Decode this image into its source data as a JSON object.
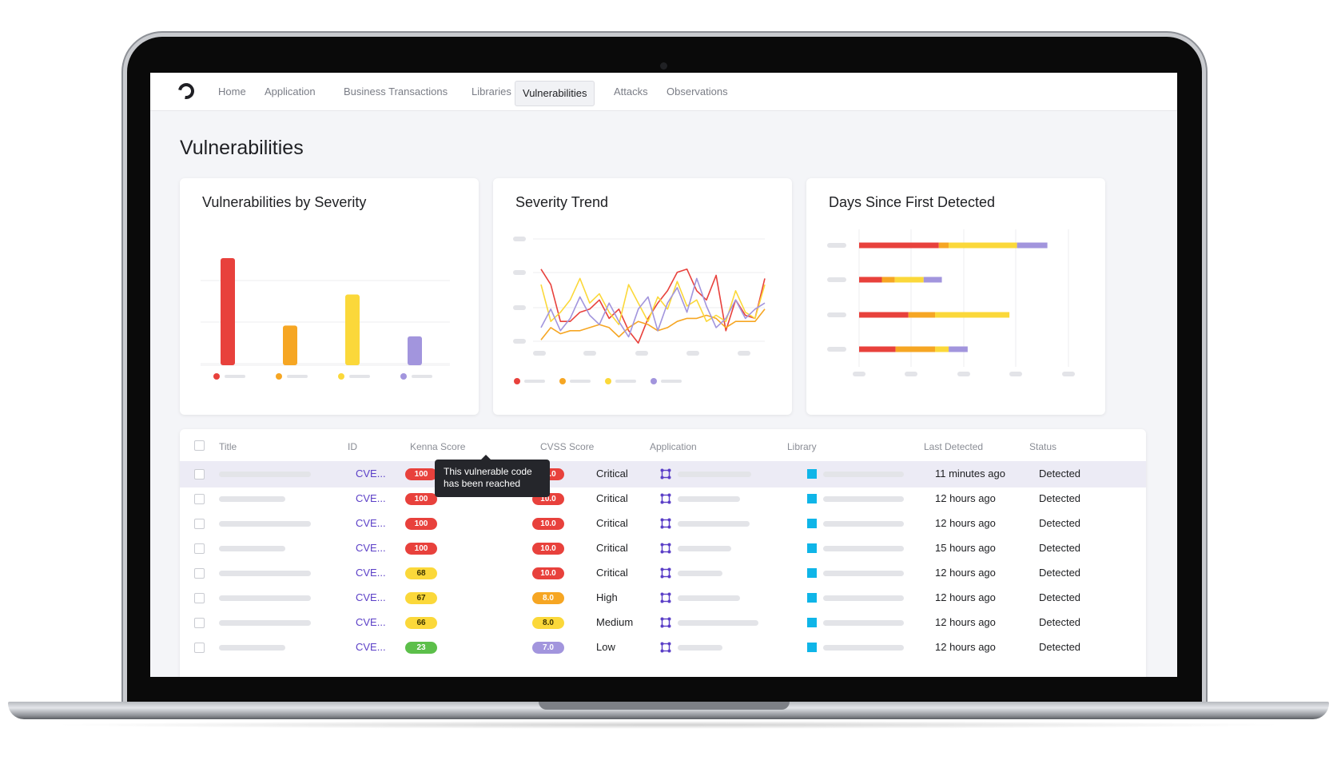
{
  "nav": {
    "items": [
      {
        "label": "Home"
      },
      {
        "label": "Application"
      },
      {
        "label": "Business Transactions"
      },
      {
        "label": "Libraries"
      },
      {
        "label": "Vulnerabilities"
      },
      {
        "label": "Attacks"
      },
      {
        "label": "Observations"
      }
    ],
    "active": "Vulnerabilities"
  },
  "page": {
    "title": "Vulnerabilities"
  },
  "cards": [
    {
      "title": "Vulnerabilities by Severity"
    },
    {
      "title": "Severity Trend"
    },
    {
      "title": "Days Since First Detected"
    }
  ],
  "colors": {
    "critical": "#e8413c",
    "high": "#f6a623",
    "medium": "#fbd83a",
    "low": "#a295dd",
    "green": "#5cbf4a",
    "accent": "#5b3fc7",
    "library": "#0fb5e8"
  },
  "chart_data": [
    {
      "type": "bar",
      "title": "Vulnerabilities by Severity",
      "categories": [
        "",
        "",
        "",
        ""
      ],
      "values": [
        100,
        37,
        66,
        27
      ],
      "colors": [
        "#e8413c",
        "#f6a623",
        "#fbd83a",
        "#a295dd"
      ],
      "ylim": [
        0,
        100
      ],
      "grid": true,
      "legend": "bottom"
    },
    {
      "type": "line",
      "title": "Severity Trend",
      "x": [
        1,
        2,
        3,
        4,
        5,
        6,
        7,
        8,
        9,
        10,
        11,
        12,
        13,
        14,
        15,
        16,
        17,
        18,
        19,
        20,
        21,
        22,
        23,
        24
      ],
      "series": [
        {
          "color": "#e8413c",
          "values": [
            25,
            20,
            8,
            8,
            11,
            12,
            15,
            9,
            12,
            5,
            1,
            9,
            14,
            18,
            24,
            25,
            18,
            15,
            23,
            5,
            15,
            10,
            9,
            22
          ]
        },
        {
          "color": "#f6a623",
          "values": [
            2,
            6,
            4,
            5,
            5,
            6,
            7,
            6,
            3,
            6,
            8,
            7,
            5,
            6,
            8,
            9,
            9,
            10,
            9,
            6,
            8,
            8,
            8,
            12
          ]
        },
        {
          "color": "#fbd83a",
          "values": [
            20,
            8,
            11,
            15,
            22,
            14,
            17,
            11,
            7,
            20,
            14,
            8,
            16,
            12,
            21,
            13,
            15,
            8,
            10,
            8,
            18,
            11,
            9,
            20
          ]
        },
        {
          "color": "#a295dd",
          "values": [
            6,
            12,
            5,
            9,
            16,
            10,
            7,
            14,
            8,
            3,
            12,
            16,
            5,
            14,
            19,
            11,
            22,
            13,
            6,
            9,
            15,
            9,
            12,
            14
          ]
        }
      ],
      "grid": true,
      "legend": "bottom"
    },
    {
      "type": "bar",
      "title": "Days Since First Detected",
      "orientation": "horizontal",
      "stacked": true,
      "categories": [
        "",
        "",
        "",
        ""
      ],
      "series": [
        {
          "color": "#e8413c",
          "values": [
            105,
            30,
            65,
            48
          ]
        },
        {
          "color": "#f6a623",
          "values": [
            13,
            17,
            35,
            52
          ]
        },
        {
          "color": "#fbd83a",
          "values": [
            90,
            38,
            98,
            18
          ]
        },
        {
          "color": "#a295dd",
          "values": [
            40,
            24,
            0,
            25
          ]
        }
      ],
      "grid": true,
      "legend": "none"
    }
  ],
  "table": {
    "columns": [
      "Title",
      "ID",
      "Kenna Score",
      "CVSS Score",
      "Application",
      "Library",
      "Last Detected",
      "Status"
    ],
    "rows": [
      {
        "id": "CVE...",
        "kenna": "100",
        "kenna_color": "#e8413c",
        "cvss": "10.0",
        "cvss_color": "#e8413c",
        "severity": "Critical",
        "last": "11 minutes ago",
        "status": "Detected",
        "highlight": true,
        "title_len": 0.72,
        "app_len": 0.66,
        "lib_len": 0.72
      },
      {
        "id": "CVE...",
        "kenna": "100",
        "kenna_color": "#e8413c",
        "cvss": "10.0",
        "cvss_color": "#e8413c",
        "severity": "Critical",
        "last": "12 hours ago",
        "status": "Detected",
        "title_len": 0.52,
        "app_len": 0.56,
        "lib_len": 0.72
      },
      {
        "id": "CVE...",
        "kenna": "100",
        "kenna_color": "#e8413c",
        "cvss": "10.0",
        "cvss_color": "#e8413c",
        "severity": "Critical",
        "last": "12 hours ago",
        "status": "Detected",
        "title_len": 0.72,
        "app_len": 0.64,
        "lib_len": 0.72
      },
      {
        "id": "CVE...",
        "kenna": "100",
        "kenna_color": "#e8413c",
        "cvss": "10.0",
        "cvss_color": "#e8413c",
        "severity": "Critical",
        "last": "15 hours ago",
        "status": "Detected",
        "title_len": 0.52,
        "app_len": 0.48,
        "lib_len": 0.72
      },
      {
        "id": "CVE...",
        "kenna": "68",
        "kenna_color": "#fbd83a",
        "cvss": "10.0",
        "cvss_color": "#e8413c",
        "severity": "Critical",
        "last": "12 hours ago",
        "status": "Detected",
        "title_len": 0.72,
        "app_len": 0.4,
        "lib_len": 0.72
      },
      {
        "id": "CVE...",
        "kenna": "67",
        "kenna_color": "#fbd83a",
        "cvss": "8.0",
        "cvss_color": "#f6a623",
        "severity": "High",
        "last": "12 hours ago",
        "status": "Detected",
        "title_len": 0.72,
        "app_len": 0.56,
        "lib_len": 0.72
      },
      {
        "id": "CVE...",
        "kenna": "66",
        "kenna_color": "#fbd83a",
        "cvss": "8.0",
        "cvss_color": "#fbd83a",
        "severity": "Medium",
        "last": "12 hours ago",
        "status": "Detected",
        "title_len": 0.72,
        "app_len": 0.72,
        "lib_len": 0.72
      },
      {
        "id": "CVE...",
        "kenna": "23",
        "kenna_color": "#5cbf4a",
        "cvss": "7.0",
        "cvss_color": "#a295dd",
        "severity": "Low",
        "last": "12 hours ago",
        "status": "Detected",
        "title_len": 0.52,
        "app_len": 0.4,
        "lib_len": 0.72
      }
    ]
  },
  "tooltip": {
    "text": "This vulnerable code has been reached"
  }
}
